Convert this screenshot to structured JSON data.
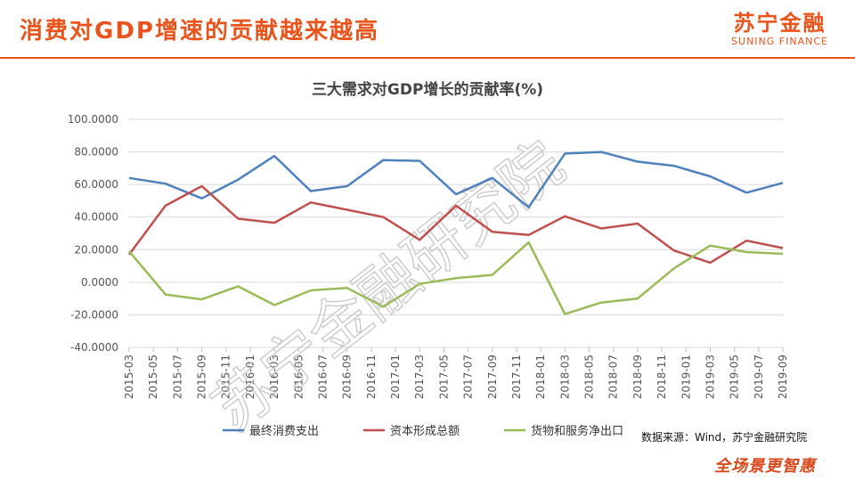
{
  "slide": {
    "title": "消费对GDP增速的贡献越来越高",
    "logo_cn": "苏宁金融",
    "logo_en": "SUNING FINANCE",
    "source_note": "数据来源：Wind，苏宁金融研究院",
    "bottom_brand": "全场景更智惠",
    "watermark": "苏宁金融研究院"
  },
  "colors": {
    "accent": "#e8541b",
    "series_consumption": "#4f81bd",
    "series_capital": "#c0504d",
    "series_net_export": "#9bbb59"
  },
  "chart_data": {
    "type": "line",
    "title": "三大需求对GDP增长的贡献率(%)",
    "xlabel": "",
    "ylabel": "",
    "ylim": [
      -40,
      100
    ],
    "yticks": [
      -40,
      -20,
      0,
      20,
      40,
      60,
      80,
      100
    ],
    "ytick_labels": [
      "-40.0000",
      "-20.0000",
      "0.0000",
      "20.0000",
      "40.0000",
      "60.0000",
      "80.0000",
      "100.0000"
    ],
    "grid": true,
    "legend_position": "bottom",
    "categories": [
      "2015-03",
      "2015-05",
      "2015-07",
      "2015-09",
      "2015-11",
      "2016-01",
      "2016-03",
      "2016-05",
      "2016-07",
      "2016-09",
      "2016-11",
      "2017-01",
      "2017-03",
      "2017-05",
      "2017-07",
      "2017-09",
      "2017-11",
      "2018-01",
      "2018-03",
      "2018-05",
      "2018-07",
      "2018-09",
      "2018-11",
      "2019-01",
      "2019-03",
      "2019-05",
      "2019-07",
      "2019-09"
    ],
    "x": [
      "2015-03",
      "2015-06",
      "2015-09",
      "2015-12",
      "2016-03",
      "2016-06",
      "2016-09",
      "2016-12",
      "2017-03",
      "2017-06",
      "2017-09",
      "2017-12",
      "2018-03",
      "2018-06",
      "2018-09",
      "2018-12",
      "2019-03",
      "2019-06",
      "2019-09"
    ],
    "series": [
      {
        "name": "最终消费支出",
        "color": "#4f81bd",
        "values": [
          64,
          60.5,
          51.5,
          63,
          77.5,
          56,
          59,
          75,
          74.5,
          54,
          64,
          46,
          79,
          80,
          74,
          71.5,
          65,
          55,
          61
        ]
      },
      {
        "name": "资本形成总额",
        "color": "#c0504d",
        "values": [
          17,
          47,
          59,
          39,
          36.5,
          49,
          44.5,
          40,
          26,
          47,
          31,
          29,
          40.5,
          33,
          36,
          19.5,
          12,
          25.5,
          21
        ]
      },
      {
        "name": "货物和服务净出口",
        "color": "#9bbb59",
        "values": [
          19,
          -7.5,
          -10.5,
          -2.5,
          -14,
          -5,
          -3.5,
          -15,
          -1,
          2.5,
          4.5,
          24.5,
          -19.5,
          -12.5,
          -10,
          8.5,
          22.5,
          18.5,
          17.5
        ]
      }
    ]
  }
}
